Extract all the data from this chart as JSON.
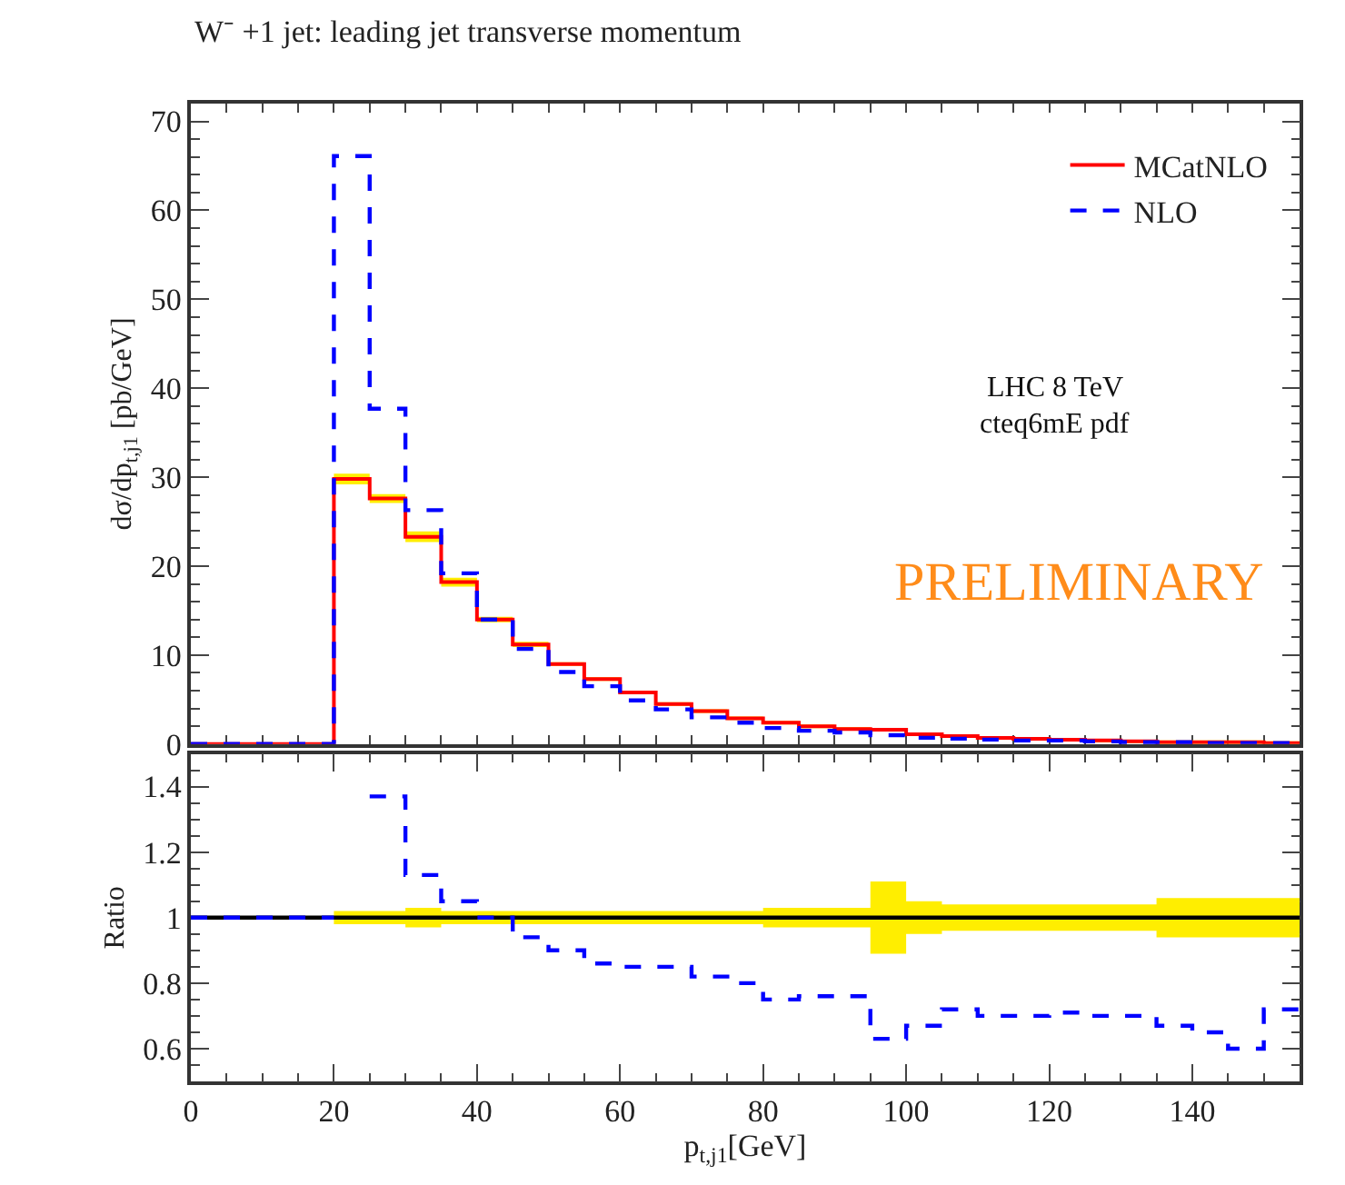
{
  "chart_data": [
    {
      "type": "step",
      "title": "W⁻ +1 jet: leading jet transverse momentum",
      "ylabel": "dσ/dp$_{t,j1}$ [pb/GeV]",
      "x": [
        0,
        5,
        10,
        15,
        20,
        25,
        30,
        35,
        40,
        45,
        50,
        55,
        60,
        65,
        70,
        75,
        80,
        85,
        90,
        95,
        100,
        105,
        110,
        115,
        120,
        125,
        130,
        135,
        140,
        145,
        150,
        155
      ],
      "series": [
        {
          "name": "MCatNLO",
          "color": "#ff0000",
          "line_style": "solid",
          "values": [
            0,
            0,
            0,
            0,
            29.8,
            27.6,
            23.3,
            18.2,
            14.0,
            11.2,
            9.0,
            7.3,
            5.8,
            4.5,
            3.7,
            2.9,
            2.4,
            2.0,
            1.7,
            1.6,
            1.1,
            0.9,
            0.7,
            0.6,
            0.5,
            0.4,
            0.3,
            0.2,
            0.2,
            0.2,
            0.1,
            0.1
          ],
          "lower": [
            null,
            null,
            null,
            null,
            29.2,
            27.1,
            22.7,
            17.7,
            13.7,
            10.9,
            8.8,
            7.1,
            5.6,
            4.3,
            3.5,
            2.7,
            2.2,
            1.8,
            1.5,
            1.4,
            0.9,
            0.7,
            0.5,
            0.4,
            0.3,
            0.2,
            0.1,
            0.0,
            0.0,
            0.0,
            0.0,
            0.0
          ],
          "upper": [
            null,
            null,
            null,
            null,
            30.4,
            28.1,
            23.9,
            18.7,
            14.3,
            11.5,
            9.2,
            7.5,
            6.0,
            4.7,
            3.9,
            3.1,
            2.6,
            2.2,
            1.9,
            1.8,
            1.3,
            1.1,
            0.9,
            0.8,
            0.7,
            0.6,
            0.5,
            0.4,
            0.4,
            0.4,
            0.3,
            0.3
          ]
        },
        {
          "name": "NLO",
          "color": "#0000ff",
          "line_style": "dashed",
          "values": [
            0,
            0,
            0,
            0,
            66.1,
            37.7,
            26.3,
            19.2,
            14.0,
            10.7,
            8.1,
            6.5,
            4.9,
            3.9,
            3.0,
            2.4,
            1.8,
            1.5,
            1.3,
            1.0,
            0.7,
            0.6,
            0.5,
            0.4,
            0.4,
            0.3,
            0.2,
            0.2,
            0.1,
            0.1,
            0.1,
            0.1
          ]
        }
      ],
      "xlim": [
        0,
        155
      ],
      "xticks": [
        {
          "value": 0,
          "label": null
        },
        {
          "value": 20,
          "label": null
        },
        {
          "value": 40,
          "label": null
        },
        {
          "value": 60,
          "label": null
        },
        {
          "value": 80,
          "label": null
        },
        {
          "value": 100,
          "label": null
        },
        {
          "value": 120,
          "label": null
        },
        {
          "value": 140,
          "label": null
        }
      ],
      "ylim": [
        0,
        72
      ],
      "yticks": [
        0,
        10,
        20,
        30,
        40,
        50,
        60,
        70
      ],
      "tick_labels": "y",
      "legend": "top right",
      "annotations": [
        "LHC 8 TeV",
        "cteq6mE pdf",
        "PRELIMINARY"
      ]
    },
    {
      "type": "step",
      "xlabel": "p$_{t,j1}$[GeV]",
      "ylabel": "Ratio",
      "x": [
        0,
        5,
        10,
        15,
        20,
        25,
        30,
        35,
        40,
        45,
        50,
        55,
        60,
        65,
        70,
        75,
        80,
        85,
        90,
        95,
        100,
        105,
        110,
        115,
        120,
        125,
        130,
        135,
        140,
        145,
        150,
        155
      ],
      "series": [
        {
          "color": "#000000",
          "line_style": "solid",
          "values": [
            1,
            1,
            1,
            1,
            1,
            1,
            1,
            1,
            1,
            1,
            1,
            1,
            1,
            1,
            1,
            1,
            1,
            1,
            1,
            1,
            1,
            1,
            1,
            1,
            1,
            1,
            1,
            1,
            1,
            1,
            1,
            1
          ],
          "lower": [
            null,
            null,
            null,
            null,
            0.98,
            0.98,
            0.97,
            0.98,
            0.98,
            0.98,
            0.98,
            0.98,
            0.98,
            0.98,
            0.98,
            0.98,
            0.97,
            0.97,
            0.97,
            0.89,
            0.95,
            0.96,
            0.96,
            0.96,
            0.96,
            0.96,
            0.96,
            0.94,
            0.94,
            0.94,
            0.94,
            0.94
          ],
          "upper": [
            null,
            null,
            null,
            null,
            1.02,
            1.02,
            1.03,
            1.02,
            1.02,
            1.02,
            1.02,
            1.02,
            1.02,
            1.02,
            1.02,
            1.02,
            1.03,
            1.03,
            1.03,
            1.11,
            1.05,
            1.04,
            1.04,
            1.04,
            1.04,
            1.04,
            1.04,
            1.06,
            1.06,
            1.06,
            1.06,
            1.06
          ]
        },
        {
          "color": "#0000ff",
          "line_style": "dashed",
          "values": [
            1,
            1,
            1,
            1,
            null,
            1.37,
            1.13,
            1.05,
            1.0,
            0.94,
            0.9,
            0.86,
            0.85,
            0.85,
            0.82,
            0.8,
            0.75,
            0.76,
            0.76,
            0.63,
            0.67,
            0.72,
            0.7,
            0.7,
            0.71,
            0.7,
            0.7,
            0.67,
            0.65,
            0.6,
            0.72,
            0.72
          ]
        }
      ],
      "xlim": [
        0,
        155
      ],
      "xticks": [
        0,
        20,
        40,
        60,
        80,
        100,
        120,
        140
      ],
      "ylim": [
        0.5,
        1.5
      ],
      "yticks": [
        0.6,
        0.8,
        {
          "value": 1,
          "label": "1"
        },
        1.2,
        1.4
      ],
      "legend": false
    }
  ]
}
